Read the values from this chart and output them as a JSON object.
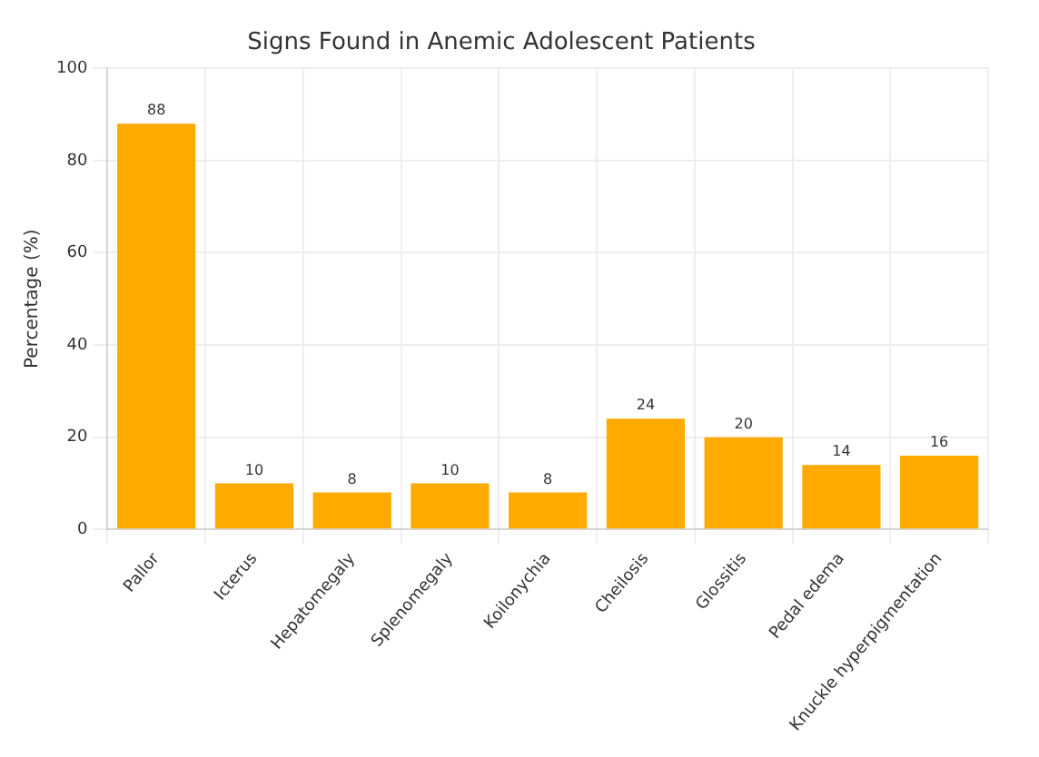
{
  "chart_data": {
    "type": "bar",
    "title": "Signs Found in Anemic Adolescent Patients",
    "ylabel": "Percentage (%)",
    "categories": [
      "Pallor",
      "Icterus",
      "Hepatomegaly",
      "Splenomegaly",
      "Koilonychia",
      "Cheilosis",
      "Glossitis",
      "Pedal edema",
      "Knuckle hyperpigmentation"
    ],
    "values": [
      88,
      10,
      8,
      10,
      8,
      24,
      20,
      14,
      16
    ],
    "color": "#ffaa00",
    "ylim": [
      0,
      100
    ],
    "yticks": [
      0,
      20,
      40,
      60,
      80,
      100
    ],
    "grid": true,
    "data_labels": true
  }
}
